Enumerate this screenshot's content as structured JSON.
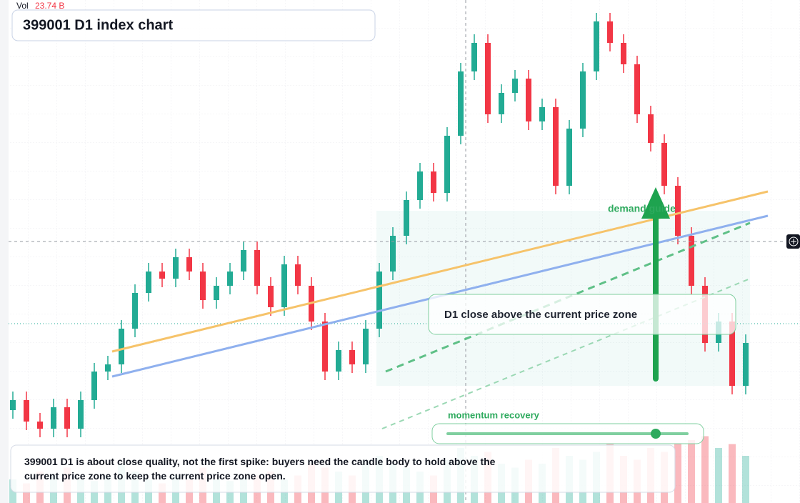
{
  "chart_data": {
    "type": "candlestick",
    "title": "399001 D1 index chart",
    "volume_title": "Vol",
    "volume_label": "23.74 B",
    "annotations": {
      "zone_note": "D1 close above the current price zone",
      "guide": "demand guide",
      "momentum": "momentum recovery",
      "note": "399001 D1 is about close quality, not the first spike: buyers need the candle body to hold above the current price zone to keep the current price zone open."
    },
    "up_color": "#22ab94",
    "down_color": "#f23645",
    "ylim": [
      0,
      704
    ],
    "volume_ylim": [
      0,
      100
    ],
    "open": [
      130,
      144,
      114,
      104,
      134,
      104,
      144,
      184,
      194,
      244,
      294,
      324,
      314,
      344,
      324,
      284,
      304,
      324,
      354,
      304,
      274,
      334,
      304,
      254,
      184,
      214,
      194,
      244,
      324,
      374,
      424,
      464,
      434,
      514,
      604,
      644,
      544,
      574,
      594,
      534,
      554,
      444,
      524,
      604,
      674,
      644,
      614,
      544,
      504,
      444,
      374,
      304,
      224,
      254,
      164
    ],
    "high": [
      156,
      156,
      126,
      146,
      146,
      156,
      196,
      206,
      256,
      306,
      336,
      336,
      356,
      356,
      336,
      316,
      336,
      366,
      366,
      316,
      346,
      346,
      316,
      266,
      226,
      226,
      256,
      336,
      386,
      436,
      476,
      476,
      526,
      616,
      656,
      656,
      586,
      606,
      606,
      566,
      566,
      536,
      616,
      686,
      686,
      656,
      626,
      556,
      516,
      456,
      386,
      316,
      266,
      266,
      236
    ],
    "low": [
      118,
      102,
      92,
      92,
      92,
      92,
      132,
      172,
      182,
      232,
      282,
      302,
      302,
      312,
      272,
      272,
      292,
      312,
      292,
      262,
      262,
      292,
      242,
      172,
      172,
      182,
      182,
      232,
      312,
      362,
      412,
      422,
      422,
      502,
      592,
      532,
      532,
      562,
      522,
      522,
      432,
      432,
      512,
      592,
      632,
      602,
      532,
      492,
      432,
      362,
      292,
      212,
      212,
      152,
      152
    ],
    "close": [
      144,
      114,
      104,
      134,
      104,
      144,
      184,
      194,
      244,
      294,
      324,
      314,
      344,
      324,
      284,
      304,
      324,
      354,
      304,
      274,
      334,
      304,
      254,
      184,
      214,
      194,
      244,
      324,
      374,
      424,
      464,
      434,
      514,
      604,
      644,
      544,
      574,
      594,
      534,
      554,
      444,
      524,
      604,
      674,
      644,
      614,
      544,
      504,
      444,
      374,
      304,
      224,
      254,
      164,
      224
    ],
    "volume": [
      30,
      25,
      40,
      35,
      45,
      30,
      28,
      35,
      50,
      40,
      30,
      25,
      35,
      30,
      45,
      30,
      28,
      32,
      35,
      40,
      30,
      35,
      50,
      45,
      40,
      35,
      55,
      60,
      50,
      45,
      40,
      35,
      55,
      70,
      60,
      65,
      50,
      45,
      55,
      50,
      70,
      60,
      55,
      65,
      75,
      60,
      55,
      70,
      65,
      75,
      80,
      85,
      70,
      75,
      60
    ]
  }
}
